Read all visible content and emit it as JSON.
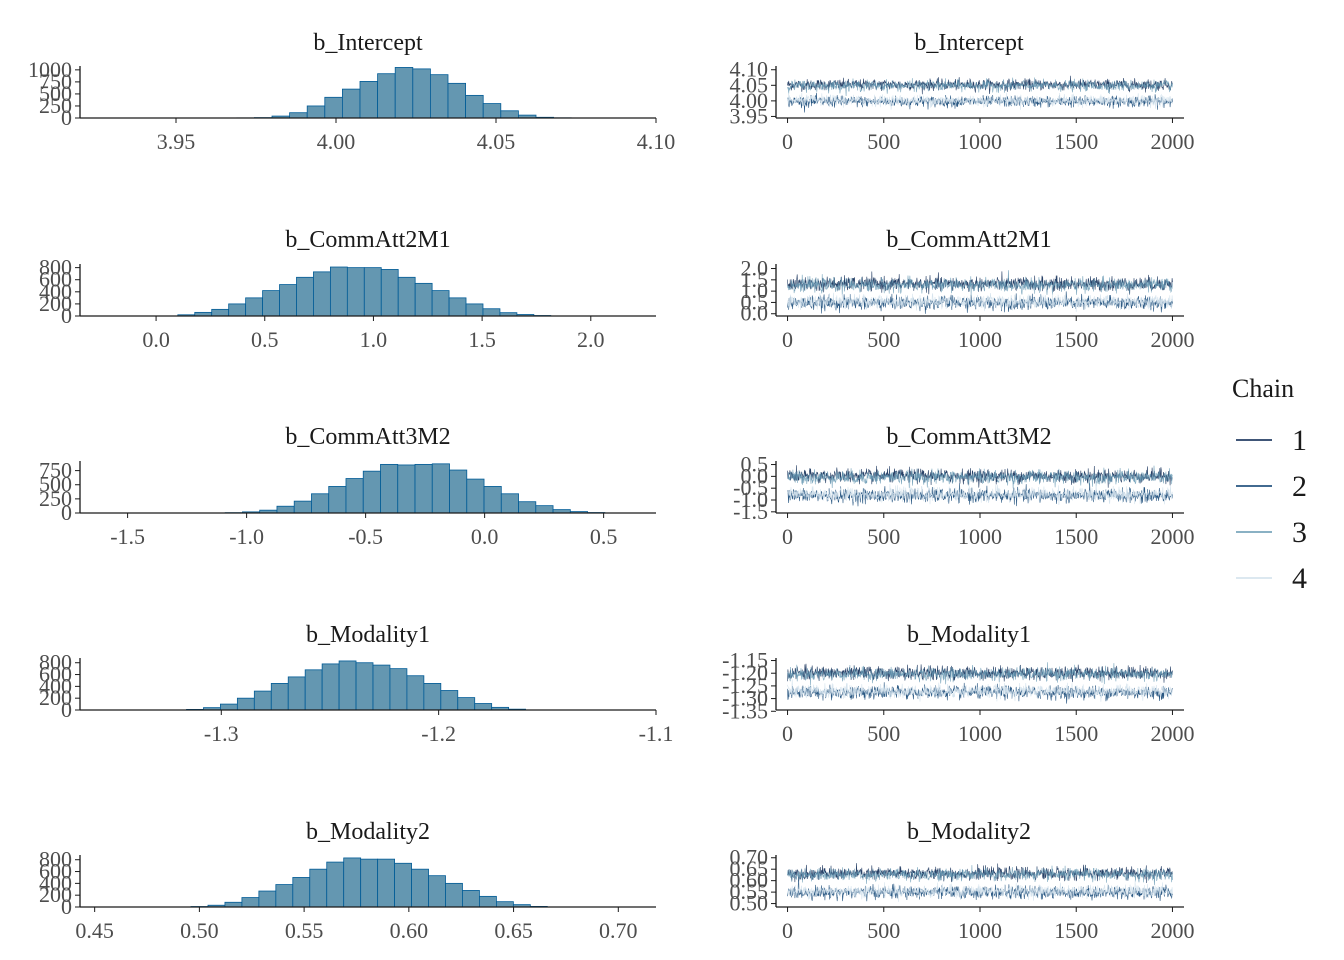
{
  "legend": {
    "title": "Chain",
    "items": [
      {
        "label": "1",
        "color": "#011f4b"
      },
      {
        "label": "2",
        "color": "#03396c"
      },
      {
        "label": "3",
        "color": "#6497b1"
      },
      {
        "label": "4",
        "color": "#d1e1ec"
      }
    ]
  },
  "colors": {
    "bar_fill": "#6497b1",
    "bar_stroke": "#005b96",
    "axis": "#1a1a1a"
  },
  "chart_data": [
    {
      "type": "bar",
      "kind": "histogram",
      "title": "b_Intercept",
      "xlim": [
        3.92,
        4.1
      ],
      "ylim": [
        0,
        1080
      ],
      "xticks": [
        3.95,
        4.0,
        4.05,
        4.1
      ],
      "xtick_labels": [
        "3.95",
        "4.00",
        "4.05",
        "4.10"
      ],
      "yticks": [
        0,
        250,
        500,
        750,
        1000
      ],
      "ytick_labels": [
        "0",
        "250",
        "500",
        "750",
        "1000"
      ],
      "bin_start": 3.969,
      "bin_width": 0.0055,
      "values": [
        3,
        8,
        40,
        110,
        250,
        430,
        600,
        760,
        920,
        1050,
        1020,
        900,
        720,
        470,
        300,
        150,
        60,
        15,
        4
      ]
    },
    {
      "type": "line",
      "kind": "trace",
      "title": "b_Intercept",
      "xlim": [
        -60,
        2060
      ],
      "ylim": [
        3.945,
        4.112
      ],
      "xticks": [
        0,
        500,
        1000,
        1500,
        2000
      ],
      "xtick_labels": [
        "0",
        "500",
        "1000",
        "1500",
        "2000"
      ],
      "yticks": [
        3.95,
        4.0,
        4.05,
        4.1
      ],
      "ytick_labels": [
        "3.95",
        "4.00",
        "4.05",
        "4.10"
      ],
      "n_iter": 2000,
      "center": 4.025,
      "sd": 0.016,
      "bands": [
        4.048,
        4.002
      ]
    },
    {
      "type": "bar",
      "kind": "histogram",
      "title": "b_CommAtt2M1",
      "xlim": [
        -0.35,
        2.3
      ],
      "ylim": [
        0,
        860
      ],
      "xticks": [
        0.0,
        0.5,
        1.0,
        1.5,
        2.0
      ],
      "xtick_labels": [
        "0.0",
        "0.5",
        "1.0",
        "1.5",
        "2.0"
      ],
      "yticks": [
        0,
        200,
        400,
        600,
        800
      ],
      "ytick_labels": [
        "0",
        "200",
        "400",
        "600",
        "800"
      ],
      "bin_start": 0.1,
      "bin_width": 0.078,
      "values": [
        20,
        60,
        110,
        200,
        300,
        420,
        520,
        640,
        730,
        810,
        800,
        800,
        770,
        640,
        540,
        420,
        300,
        200,
        120,
        55,
        25,
        8
      ]
    },
    {
      "type": "line",
      "kind": "trace",
      "title": "b_CommAtt2M1",
      "xlim": [
        -60,
        2060
      ],
      "ylim": [
        -0.1,
        2.2
      ],
      "xticks": [
        0,
        500,
        1000,
        1500,
        2000
      ],
      "xtick_labels": [
        "0",
        "500",
        "1000",
        "1500",
        "2000"
      ],
      "yticks": [
        0.0,
        0.5,
        1.0,
        1.5,
        2.0
      ],
      "ytick_labels": [
        "0.0",
        "0.5",
        "1.0",
        "1.5",
        "2.0"
      ],
      "n_iter": 2000,
      "center": 0.9,
      "sd": 0.28,
      "bands": [
        1.25,
        0.55
      ]
    },
    {
      "type": "bar",
      "kind": "histogram",
      "title": "b_CommAtt3M2",
      "xlim": [
        -1.7,
        0.72
      ],
      "ylim": [
        0,
        920
      ],
      "xticks": [
        -1.5,
        -1.0,
        -0.5,
        0.0,
        0.5
      ],
      "xtick_labels": [
        "-1.5",
        "-1.0",
        "-0.5",
        "0.0",
        "0.5"
      ],
      "yticks": [
        0,
        250,
        500,
        750
      ],
      "ytick_labels": [
        "0",
        "250",
        "500",
        "750"
      ],
      "bin_start": -1.09,
      "bin_width": 0.0725,
      "values": [
        6,
        20,
        50,
        120,
        210,
        340,
        470,
        610,
        740,
        860,
        850,
        860,
        870,
        760,
        600,
        470,
        340,
        200,
        130,
        60,
        25,
        8
      ]
    },
    {
      "type": "line",
      "kind": "trace",
      "title": "b_CommAtt3M2",
      "xlim": [
        -60,
        2060
      ],
      "ylim": [
        -1.55,
        0.65
      ],
      "xticks": [
        0,
        500,
        1000,
        1500,
        2000
      ],
      "xtick_labels": [
        "0",
        "500",
        "1000",
        "1500",
        "2000"
      ],
      "yticks": [
        -1.5,
        -1.0,
        -0.5,
        0.0,
        0.5
      ],
      "ytick_labels": [
        "-1.5",
        "-1.0",
        "-0.5",
        "0.0",
        "0.5"
      ],
      "n_iter": 2000,
      "center": -0.4,
      "sd": 0.27,
      "bands": [
        -0.05,
        -0.75
      ]
    },
    {
      "type": "bar",
      "kind": "histogram",
      "title": "b_Modality1",
      "xlim": [
        -1.365,
        -1.1
      ],
      "ylim": [
        0,
        880
      ],
      "xticks": [
        -1.3,
        -1.2,
        -1.1
      ],
      "xtick_labels": [
        "-1.3",
        "-1.2",
        "-1.1"
      ],
      "yticks": [
        0,
        200,
        400,
        600,
        800
      ],
      "ytick_labels": [
        "0",
        "200",
        "400",
        "600",
        "800"
      ],
      "bin_start": -1.316,
      "bin_width": 0.0078,
      "values": [
        10,
        40,
        100,
        200,
        320,
        450,
        560,
        680,
        780,
        830,
        800,
        760,
        700,
        580,
        450,
        330,
        210,
        110,
        45,
        14
      ]
    },
    {
      "type": "line",
      "kind": "trace",
      "title": "b_Modality1",
      "xlim": [
        -60,
        2060
      ],
      "ylim": [
        -1.345,
        -1.14
      ],
      "xticks": [
        0,
        500,
        1000,
        1500,
        2000
      ],
      "xtick_labels": [
        "0",
        "500",
        "1000",
        "1500",
        "2000"
      ],
      "yticks": [
        -1.15,
        -1.2,
        -1.25,
        -1.3,
        -1.35
      ],
      "ytick_labels": [
        "-1.15",
        "-1.20",
        "-1.25",
        "-1.30",
        "-1.35"
      ],
      "n_iter": 2000,
      "center": -1.235,
      "sd": 0.024,
      "bands": [
        -1.205,
        -1.27
      ]
    },
    {
      "type": "bar",
      "kind": "histogram",
      "title": "b_Modality2",
      "xlim": [
        0.443,
        0.718
      ],
      "ylim": [
        0,
        880
      ],
      "xticks": [
        0.45,
        0.5,
        0.55,
        0.6,
        0.65,
        0.7
      ],
      "xtick_labels": [
        "0.45",
        "0.50",
        "0.55",
        "0.60",
        "0.65",
        "0.70"
      ],
      "yticks": [
        0,
        200,
        400,
        600,
        800
      ],
      "ytick_labels": [
        "0",
        "200",
        "400",
        "600",
        "800"
      ],
      "bin_start": 0.496,
      "bin_width": 0.0081,
      "values": [
        8,
        30,
        80,
        160,
        270,
        380,
        500,
        640,
        760,
        830,
        810,
        810,
        740,
        640,
        530,
        400,
        280,
        180,
        90,
        40,
        10
      ]
    },
    {
      "type": "line",
      "kind": "trace",
      "title": "b_Modality2",
      "xlim": [
        -60,
        2060
      ],
      "ylim": [
        0.485,
        0.712
      ],
      "xticks": [
        0,
        500,
        1000,
        1500,
        2000
      ],
      "xtick_labels": [
        "0",
        "500",
        "1000",
        "1500",
        "2000"
      ],
      "yticks": [
        0.5,
        0.55,
        0.6,
        0.65,
        0.7
      ],
      "ytick_labels": [
        "0.50",
        "0.55",
        "0.60",
        "0.65",
        "0.70"
      ],
      "n_iter": 2000,
      "center": 0.59,
      "sd": 0.025,
      "bands": [
        0.625,
        0.555
      ]
    }
  ]
}
